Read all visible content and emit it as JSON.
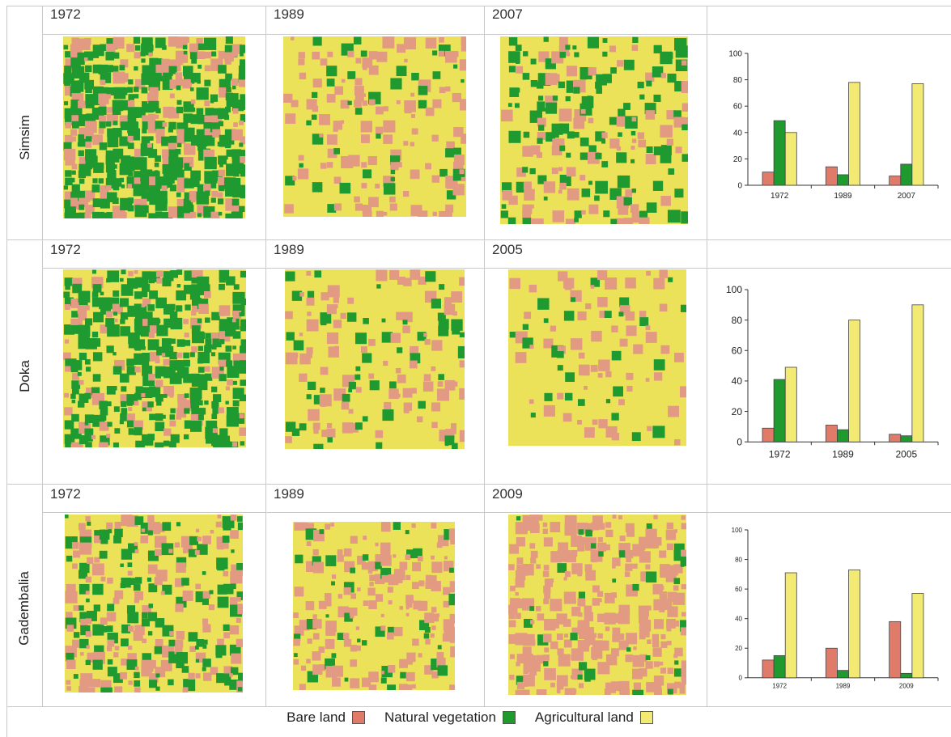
{
  "colors": {
    "bare": "#e07b6a",
    "vegetation": "#1e9a2e",
    "agricultural": "#f3ea74",
    "map_bare": "#e39a83",
    "map_vegetation": "#1f9a30",
    "map_agricultural": "#ece25a"
  },
  "rows": [
    {
      "site": "Simsim",
      "years": [
        "1972",
        "1989",
        "2007"
      ]
    },
    {
      "site": "Doka",
      "years": [
        "1972",
        "1989",
        "2005"
      ]
    },
    {
      "site": "Gadembalia",
      "years": [
        "1972",
        "1989",
        "2009"
      ]
    }
  ],
  "legend": {
    "bare": "Bare land",
    "vegetation": "Natural vegetation",
    "agricultural": "Agricultural land"
  },
  "chart_data": [
    {
      "type": "bar",
      "categories": [
        "1972",
        "1989",
        "2007"
      ],
      "series": [
        {
          "name": "Bare land",
          "values": [
            10,
            14,
            7
          ]
        },
        {
          "name": "Natural vegetation",
          "values": [
            49,
            8,
            16
          ]
        },
        {
          "name": "Agricultural land",
          "values": [
            40,
            78,
            77
          ]
        }
      ],
      "ylim": [
        0,
        100
      ],
      "yticks": [
        0,
        20,
        40,
        60,
        80,
        100
      ]
    },
    {
      "type": "bar",
      "categories": [
        "1972",
        "1989",
        "2005"
      ],
      "series": [
        {
          "name": "Bare land",
          "values": [
            9,
            11,
            5
          ]
        },
        {
          "name": "Natural vegetation",
          "values": [
            41,
            8,
            4
          ]
        },
        {
          "name": "Agricultural land",
          "values": [
            49,
            80,
            90
          ]
        }
      ],
      "ylim": [
        0,
        100
      ],
      "yticks": [
        0,
        20,
        40,
        60,
        80,
        100
      ]
    },
    {
      "type": "bar",
      "categories": [
        "1972",
        "1989",
        "2009"
      ],
      "series": [
        {
          "name": "Bare land",
          "values": [
            12,
            20,
            38
          ]
        },
        {
          "name": "Natural vegetation",
          "values": [
            15,
            5,
            3
          ]
        },
        {
          "name": "Agricultural land",
          "values": [
            71,
            73,
            57
          ]
        }
      ],
      "ylim": [
        0,
        100
      ],
      "yticks": [
        0,
        20,
        40,
        60,
        80,
        100
      ]
    }
  ]
}
